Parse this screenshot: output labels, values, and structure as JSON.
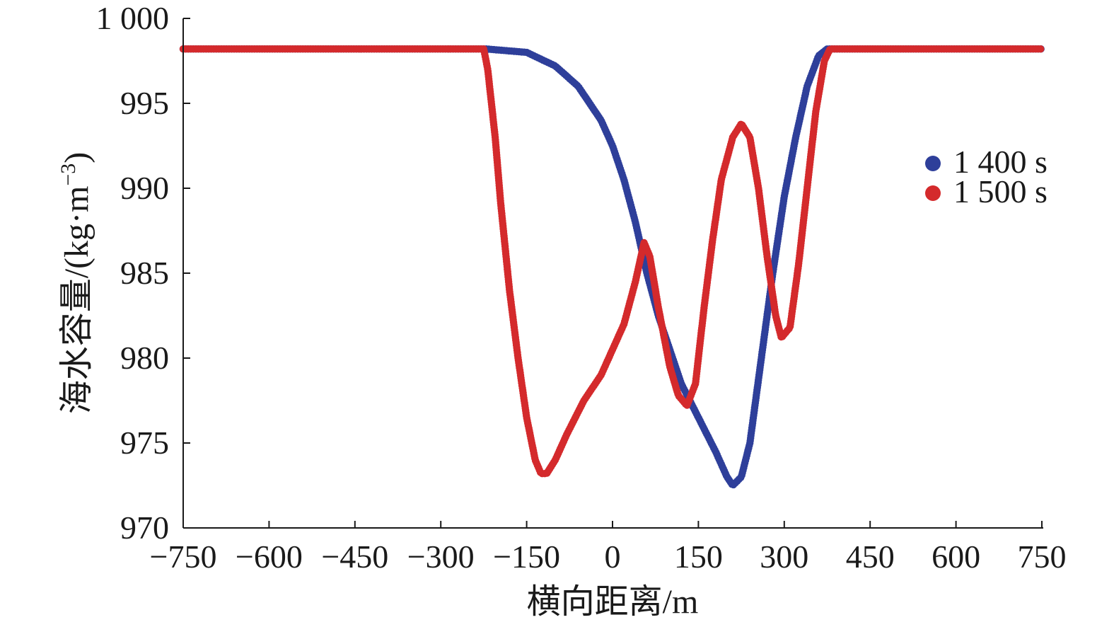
{
  "chart_data": {
    "type": "scatter",
    "xlabel": "横向距离/m",
    "ylabel": "海水容量/(kg·m",
    "ylabel_sup": "−3",
    "ylabel_close": ")",
    "xlim": [
      -750,
      750
    ],
    "ylim": [
      970,
      1000
    ],
    "x_ticks": [
      -750,
      -600,
      -450,
      -300,
      -150,
      0,
      150,
      300,
      450,
      600,
      750
    ],
    "x_tick_labels": [
      "−750",
      "−600",
      "−450",
      "−300",
      "−150",
      "0",
      "150",
      "300",
      "450",
      "600",
      "750"
    ],
    "y_ticks": [
      970,
      975,
      980,
      985,
      990,
      995,
      1000
    ],
    "y_tick_labels": [
      "970",
      "975",
      "980",
      "985",
      "990",
      "995",
      "1 000"
    ],
    "grid": false,
    "legend_position": "right",
    "series": [
      {
        "name": "1 400 s",
        "color": "#2e3f9a",
        "points": [
          [
            -750,
            998.2
          ],
          [
            -300,
            998.2
          ],
          [
            -220,
            998.2
          ],
          [
            -150,
            998.0
          ],
          [
            -100,
            997.2
          ],
          [
            -60,
            996.0
          ],
          [
            -20,
            994.0
          ],
          [
            0,
            992.5
          ],
          [
            20,
            990.5
          ],
          [
            40,
            988.0
          ],
          [
            60,
            985.0
          ],
          [
            80,
            982.5
          ],
          [
            100,
            980.5
          ],
          [
            120,
            978.5
          ],
          [
            150,
            976.5
          ],
          [
            180,
            974.5
          ],
          [
            200,
            973.0
          ],
          [
            210,
            972.5
          ],
          [
            225,
            973.0
          ],
          [
            240,
            975.0
          ],
          [
            260,
            980.0
          ],
          [
            280,
            985.0
          ],
          [
            300,
            989.5
          ],
          [
            320,
            993.0
          ],
          [
            340,
            996.0
          ],
          [
            360,
            997.8
          ],
          [
            375,
            998.2
          ],
          [
            750,
            998.2
          ]
        ]
      },
      {
        "name": "1 500 s",
        "color": "#d42a2c",
        "points": [
          [
            -750,
            998.2
          ],
          [
            -225,
            998.2
          ],
          [
            -218,
            997.0
          ],
          [
            -205,
            993.0
          ],
          [
            -195,
            989.0
          ],
          [
            -180,
            984.0
          ],
          [
            -165,
            980.0
          ],
          [
            -150,
            976.5
          ],
          [
            -135,
            974.0
          ],
          [
            -125,
            973.2
          ],
          [
            -115,
            973.2
          ],
          [
            -100,
            974.0
          ],
          [
            -80,
            975.5
          ],
          [
            -50,
            977.5
          ],
          [
            -20,
            979.0
          ],
          [
            0,
            980.5
          ],
          [
            20,
            982.0
          ],
          [
            40,
            984.5
          ],
          [
            55,
            986.8
          ],
          [
            65,
            986.0
          ],
          [
            80,
            983.0
          ],
          [
            100,
            979.5
          ],
          [
            115,
            977.8
          ],
          [
            130,
            977.2
          ],
          [
            145,
            978.5
          ],
          [
            160,
            983.0
          ],
          [
            175,
            987.0
          ],
          [
            190,
            990.5
          ],
          [
            210,
            993.0
          ],
          [
            225,
            993.8
          ],
          [
            240,
            993.0
          ],
          [
            255,
            990.0
          ],
          [
            270,
            986.0
          ],
          [
            285,
            982.5
          ],
          [
            295,
            981.2
          ],
          [
            310,
            981.8
          ],
          [
            325,
            985.5
          ],
          [
            340,
            990.0
          ],
          [
            355,
            994.5
          ],
          [
            370,
            997.5
          ],
          [
            380,
            998.2
          ],
          [
            750,
            998.2
          ]
        ]
      }
    ]
  }
}
